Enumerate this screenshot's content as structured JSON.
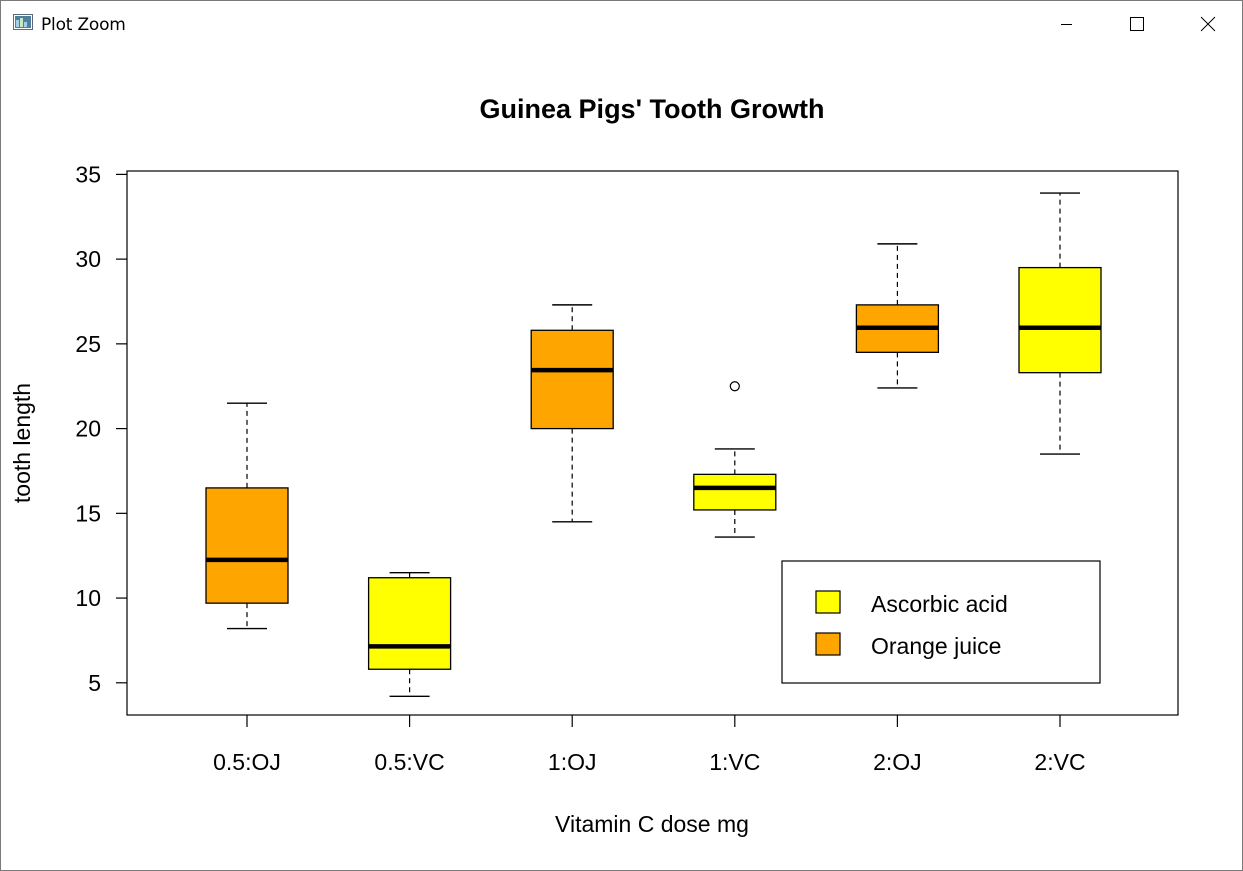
{
  "window": {
    "title": "Plot Zoom",
    "icons": {
      "app": "plot-app-icon",
      "minimize": "minimize-icon",
      "maximize": "maximize-icon",
      "close": "close-icon"
    }
  },
  "chart_data": {
    "type": "boxplot",
    "title": "Guinea Pigs' Tooth Growth",
    "xlabel": "Vitamin C dose mg",
    "ylabel": "tooth length",
    "ylim": [
      3.1,
      35.2
    ],
    "yticks": [
      5,
      10,
      15,
      20,
      25,
      30,
      35
    ],
    "categories": [
      "0.5:OJ",
      "0.5:VC",
      "1:OJ",
      "1:VC",
      "2:OJ",
      "2:VC"
    ],
    "boxes": [
      {
        "category": "0.5:OJ",
        "min": 8.2,
        "q1": 9.7,
        "median": 12.25,
        "q3": 16.5,
        "max": 21.5,
        "outliers": [],
        "supplement": "Orange juice"
      },
      {
        "category": "0.5:VC",
        "min": 4.2,
        "q1": 5.8,
        "median": 7.15,
        "q3": 11.2,
        "max": 11.5,
        "outliers": [],
        "supplement": "Ascorbic acid"
      },
      {
        "category": "1:OJ",
        "min": 14.5,
        "q1": 20.0,
        "median": 23.45,
        "q3": 25.8,
        "max": 27.3,
        "outliers": [],
        "supplement": "Orange juice"
      },
      {
        "category": "1:VC",
        "min": 13.6,
        "q1": 15.2,
        "median": 16.5,
        "q3": 17.3,
        "max": 18.8,
        "outliers": [
          22.5
        ],
        "supplement": "Ascorbic acid"
      },
      {
        "category": "2:OJ",
        "min": 22.4,
        "q1": 24.5,
        "median": 25.95,
        "q3": 27.3,
        "max": 30.9,
        "outliers": [],
        "supplement": "Orange juice"
      },
      {
        "category": "2:VC",
        "min": 18.5,
        "q1": 23.3,
        "median": 25.95,
        "q3": 29.5,
        "max": 33.9,
        "outliers": [],
        "supplement": "Ascorbic acid"
      }
    ],
    "legend": {
      "position": "bottom-right",
      "entries": [
        {
          "label": "Ascorbic acid",
          "color": "#ffff00"
        },
        {
          "label": "Orange juice",
          "color": "#ffa500"
        }
      ]
    },
    "colors": {
      "Ascorbic acid": "#ffff00",
      "Orange juice": "#ffa500"
    }
  }
}
